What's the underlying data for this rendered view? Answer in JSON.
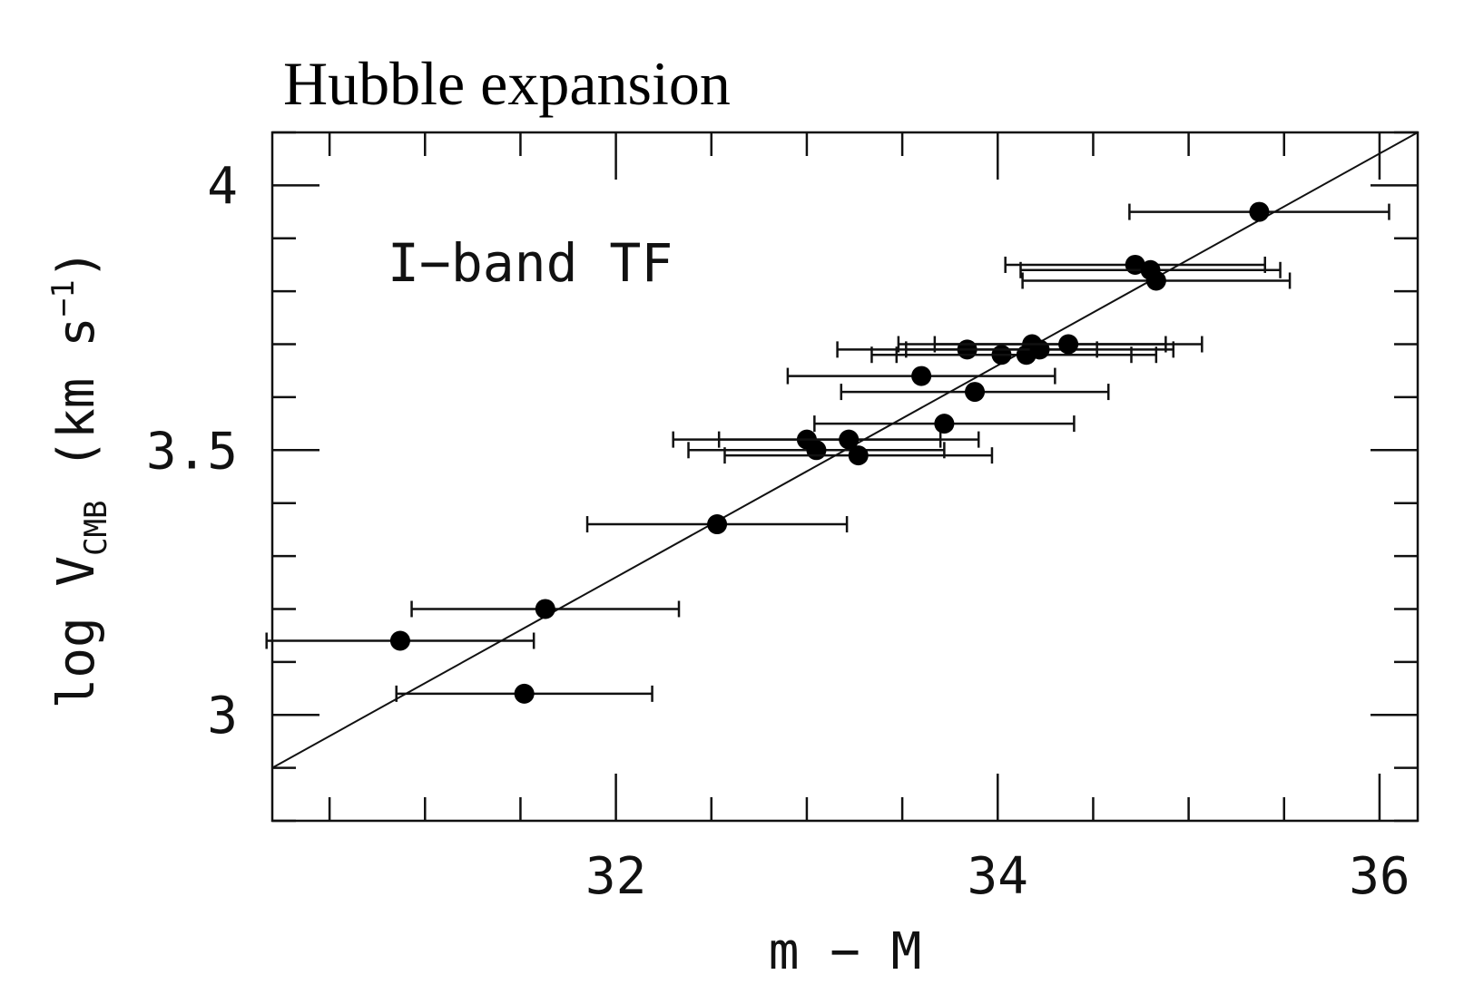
{
  "slide": {
    "title": "Hubble expansion"
  },
  "chart_data": {
    "type": "scatter",
    "title": "",
    "annotation": "I−band TF",
    "xlabel": "m − M",
    "ylabel_parts": {
      "main": "log V",
      "subscript": "CMB",
      "units_open": " (km s",
      "superscript": "−1",
      "units_close": ")"
    },
    "xlim": [
      30.2,
      36.2
    ],
    "ylim": [
      2.8,
      4.1
    ],
    "x_ticks": [
      32,
      34,
      36
    ],
    "x_tick_labels": [
      "32",
      "34",
      "36"
    ],
    "x_minor_step": 0.5,
    "y_ticks": [
      3,
      3.5,
      4
    ],
    "y_tick_labels": [
      "3",
      "3.5",
      "4"
    ],
    "y_minor_step": 0.1,
    "grid": false,
    "legend": "none",
    "marker_color": "#000000",
    "points": [
      {
        "x": 30.87,
        "y": 3.14,
        "xerr": 0.7
      },
      {
        "x": 31.52,
        "y": 3.04,
        "xerr": 0.67
      },
      {
        "x": 31.63,
        "y": 3.2,
        "xerr": 0.7
      },
      {
        "x": 32.53,
        "y": 3.36,
        "xerr": 0.68
      },
      {
        "x": 33.0,
        "y": 3.52,
        "xerr": 0.7
      },
      {
        "x": 33.05,
        "y": 3.5,
        "xerr": 0.67
      },
      {
        "x": 33.22,
        "y": 3.52,
        "xerr": 0.68
      },
      {
        "x": 33.27,
        "y": 3.49,
        "xerr": 0.7
      },
      {
        "x": 33.6,
        "y": 3.64,
        "xerr": 0.7
      },
      {
        "x": 33.72,
        "y": 3.55,
        "xerr": 0.68
      },
      {
        "x": 33.84,
        "y": 3.69,
        "xerr": 0.68
      },
      {
        "x": 33.88,
        "y": 3.61,
        "xerr": 0.7
      },
      {
        "x": 34.02,
        "y": 3.68,
        "xerr": 0.68
      },
      {
        "x": 34.15,
        "y": 3.68,
        "xerr": 0.68
      },
      {
        "x": 34.18,
        "y": 3.7,
        "xerr": 0.7
      },
      {
        "x": 34.22,
        "y": 3.69,
        "xerr": 0.7
      },
      {
        "x": 34.37,
        "y": 3.7,
        "xerr": 0.7
      },
      {
        "x": 34.72,
        "y": 3.85,
        "xerr": 0.68
      },
      {
        "x": 34.8,
        "y": 3.84,
        "xerr": 0.68
      },
      {
        "x": 34.83,
        "y": 3.82,
        "xerr": 0.7
      },
      {
        "x": 35.37,
        "y": 3.95,
        "xerr": 0.68
      }
    ],
    "fit_line": {
      "x": [
        30.2,
        36.2
      ],
      "y": [
        2.9,
        4.1
      ]
    }
  }
}
